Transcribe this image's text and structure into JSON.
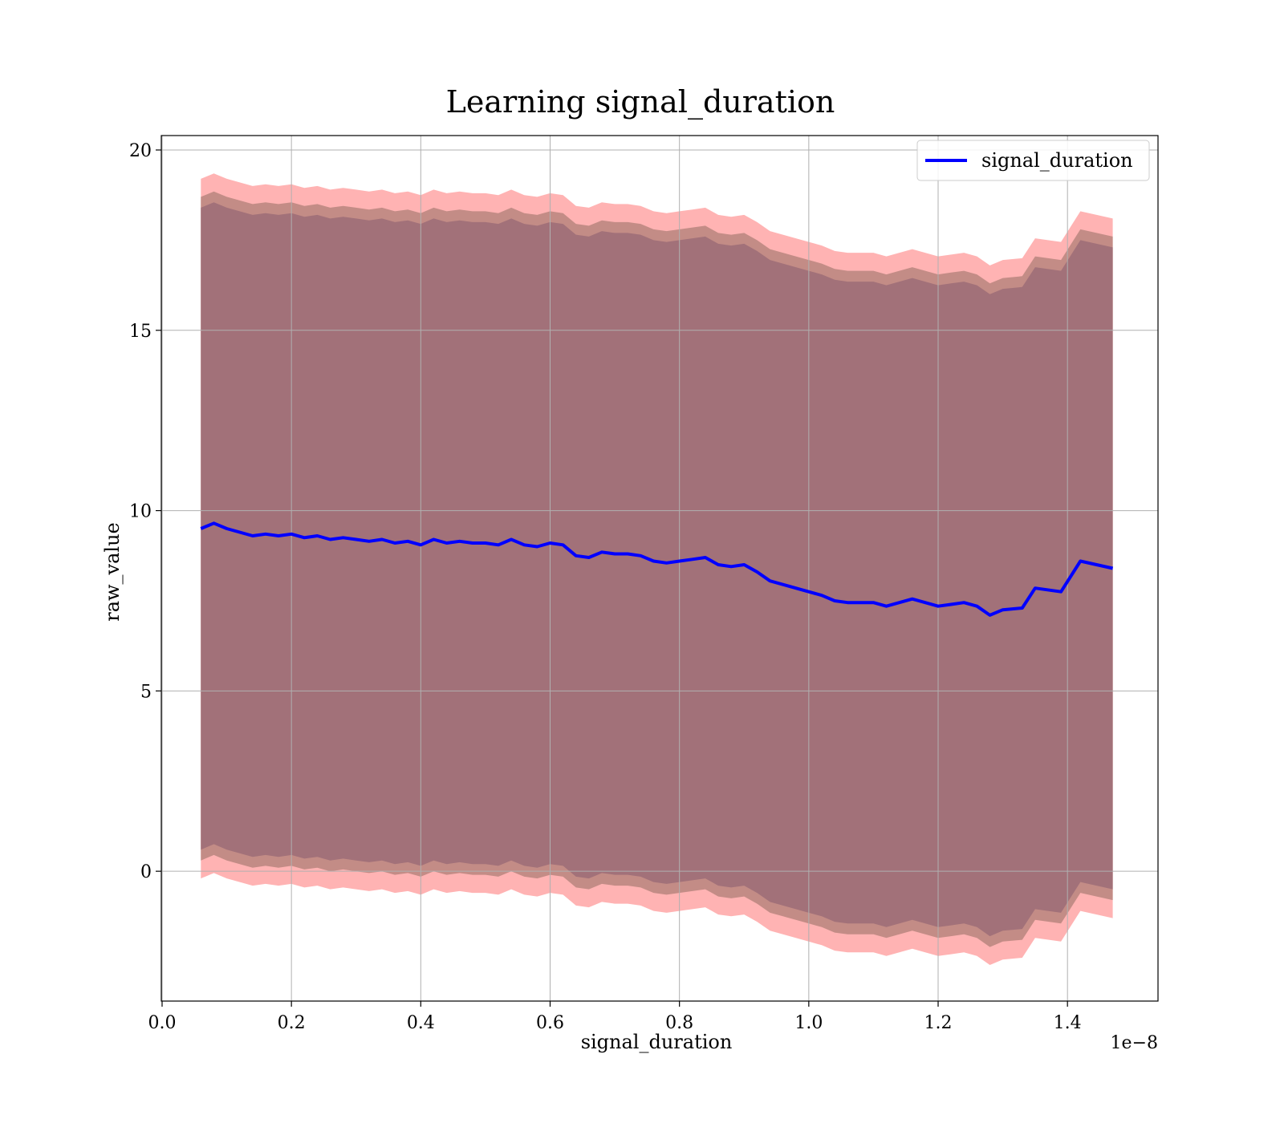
{
  "chart_data": {
    "type": "line",
    "title": "Learning signal_duration",
    "xlabel": "signal_duration",
    "ylabel": "raw_value",
    "x_offset_text": "1e−8",
    "x_ticks": [
      "0.0",
      "0.2",
      "0.4",
      "0.6",
      "0.8",
      "1.0",
      "1.2",
      "1.4"
    ],
    "y_ticks": [
      "0",
      "5",
      "10",
      "15",
      "20"
    ],
    "xlim": [
      -1.22e-11,
      1.54e-08
    ],
    "ylim": [
      -3.6,
      20.4
    ],
    "grid": true,
    "legend_position": "top-right",
    "x": [
      6e-10,
      8e-10,
      1e-09,
      1.2e-09,
      1.4e-09,
      1.6e-09,
      1.8e-09,
      2e-09,
      2.2e-09,
      2.4e-09,
      2.6e-09,
      2.8e-09,
      3e-09,
      3.2e-09,
      3.4e-09,
      3.6e-09,
      3.8e-09,
      4e-09,
      4.2e-09,
      4.4e-09,
      4.6e-09,
      4.8e-09,
      5e-09,
      5.2e-09,
      5.4e-09,
      5.6e-09,
      5.8e-09,
      6e-09,
      6.2e-09,
      6.4e-09,
      6.6e-09,
      6.8e-09,
      7e-09,
      7.2e-09,
      7.4e-09,
      7.6e-09,
      7.8e-09,
      8e-09,
      8.2e-09,
      8.4e-09,
      8.6e-09,
      8.8e-09,
      9e-09,
      9.2e-09,
      9.4e-09,
      9.6e-09,
      9.8e-09,
      1e-08,
      1.02e-08,
      1.04e-08,
      1.06e-08,
      1.08e-08,
      1.1e-08,
      1.12e-08,
      1.14e-08,
      1.16e-08,
      1.18e-08,
      1.2e-08,
      1.22e-08,
      1.24e-08,
      1.26e-08,
      1.28e-08,
      1.3e-08,
      1.33e-08,
      1.35e-08,
      1.39e-08,
      1.42e-08,
      1.47e-08
    ],
    "series": [
      {
        "name": "signal_duration",
        "color": "#0000ff",
        "values": [
          9.5,
          9.65,
          9.5,
          9.4,
          9.3,
          9.35,
          9.3,
          9.35,
          9.25,
          9.3,
          9.2,
          9.25,
          9.2,
          9.15,
          9.2,
          9.1,
          9.15,
          9.05,
          9.2,
          9.1,
          9.15,
          9.1,
          9.1,
          9.05,
          9.2,
          9.05,
          9.0,
          9.1,
          9.05,
          8.75,
          8.7,
          8.85,
          8.8,
          8.8,
          8.75,
          8.6,
          8.55,
          8.6,
          8.65,
          8.7,
          8.5,
          8.45,
          8.5,
          8.3,
          8.05,
          7.95,
          7.85,
          7.75,
          7.65,
          7.5,
          7.45,
          7.45,
          7.45,
          7.35,
          7.45,
          7.55,
          7.45,
          7.35,
          7.4,
          7.45,
          7.35,
          7.1,
          7.25,
          7.3,
          7.85,
          7.75,
          8.6,
          8.4
        ]
      }
    ],
    "band_colors": [
      "#ffb3b3",
      "#c08a84",
      "#a07078"
    ],
    "band_offsets_upper": [
      9.7,
      9.2,
      8.9
    ],
    "band_offsets_lower": [
      9.7,
      9.2,
      8.9
    ]
  }
}
